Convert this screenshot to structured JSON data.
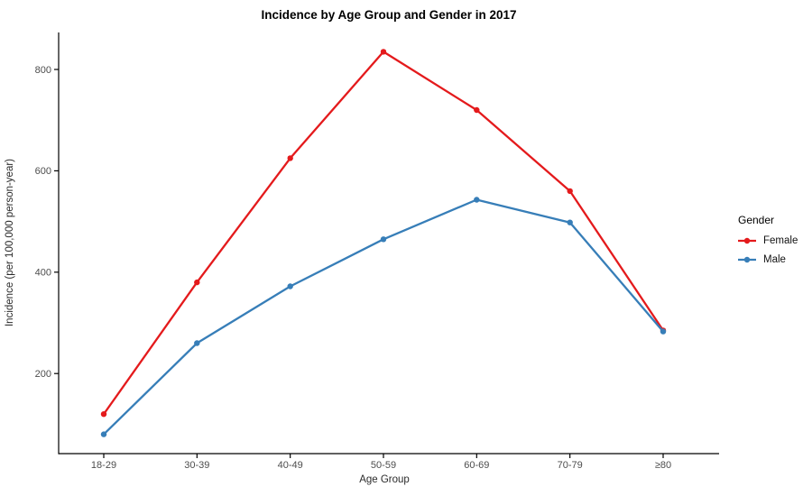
{
  "chart_data": {
    "type": "line",
    "title": "Incidence by Age Group and Gender in 2017",
    "xlabel": "Age Group",
    "ylabel": "Incidence (per 100,000 person-year)",
    "categories": [
      "18-29",
      "30-39",
      "40-49",
      "50-59",
      "60-69",
      "70-79",
      "≥80"
    ],
    "series": [
      {
        "name": "Female",
        "color": "#E41A1C",
        "values": [
          120,
          380,
          625,
          835,
          720,
          560,
          285
        ]
      },
      {
        "name": "Male",
        "color": "#377EB8",
        "values": [
          80,
          260,
          372,
          465,
          543,
          498,
          283
        ]
      }
    ],
    "yticks": [
      200,
      400,
      600,
      800
    ],
    "ylim": [
      42,
      873
    ],
    "grid": false,
    "markers": true,
    "legend": {
      "title": "Gender",
      "position": "right"
    }
  },
  "colors": {
    "background": "#ffffff",
    "axis_line": "#000000",
    "tick_label": "#4d4d4d",
    "title": "#000000"
  }
}
